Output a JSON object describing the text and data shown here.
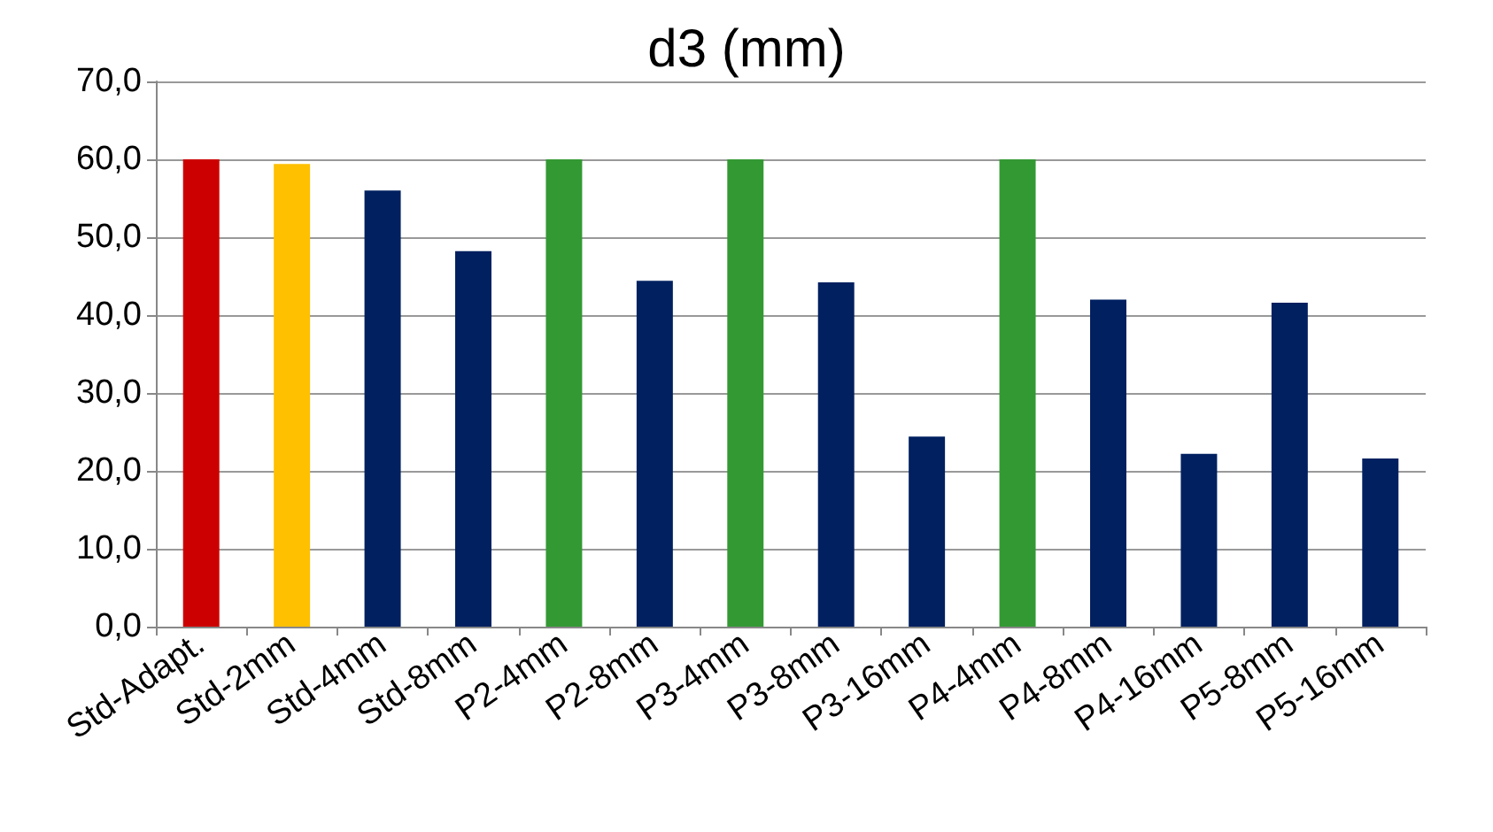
{
  "chart_data": {
    "type": "bar",
    "title": "d3 (mm)",
    "categories": [
      "Std-Adapt.",
      "Std-2mm",
      "Std-4mm",
      "Std-8mm",
      "P2-4mm",
      "P2-8mm",
      "P3-4mm",
      "P3-8mm",
      "P3-16mm",
      "P4-4mm",
      "P4-8mm",
      "P4-16mm",
      "P5-8mm",
      "P5-16mm"
    ],
    "values": [
      60.0,
      59.4,
      56.0,
      48.2,
      60.0,
      44.4,
      60.0,
      44.2,
      24.4,
      60.0,
      42.0,
      22.2,
      41.6,
      21.6
    ],
    "colors": [
      "#cc0000",
      "#ffc000",
      "#002060",
      "#002060",
      "#339933",
      "#002060",
      "#339933",
      "#002060",
      "#002060",
      "#339933",
      "#002060",
      "#002060",
      "#002060",
      "#002060"
    ],
    "ylim": [
      0,
      70
    ],
    "yticks": [
      {
        "value": 0,
        "label": "0,0"
      },
      {
        "value": 10,
        "label": "10,0"
      },
      {
        "value": 20,
        "label": "20,0"
      },
      {
        "value": 30,
        "label": "30,0"
      },
      {
        "value": 40,
        "label": "40,0"
      },
      {
        "value": 50,
        "label": "50,0"
      },
      {
        "value": 60,
        "label": "60,0"
      },
      {
        "value": 70,
        "label": "70,0"
      }
    ],
    "grid": "y"
  }
}
